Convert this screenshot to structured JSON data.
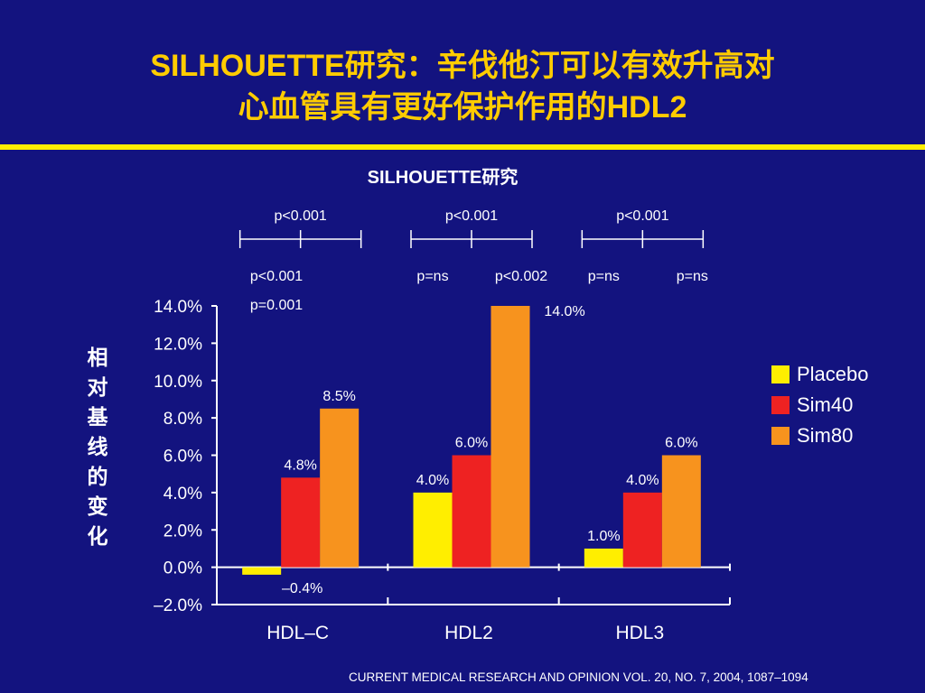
{
  "slide": {
    "title_line1": "SILHOUETTE研究：辛伐他汀可以有效升高对",
    "title_line2": "心血管具有更好保护作用的HDL2",
    "citation": "CURRENT MEDICAL RESEARCH AND OPINION VOL. 20, NO. 7, 2004, 1087–1094"
  },
  "chart_data": {
    "type": "bar",
    "title": "SILHOUETTE研究",
    "ylabel": "相对基线的变化",
    "xlabel": "",
    "categories": [
      "HDL–C",
      "HDL2",
      "HDL3"
    ],
    "series": [
      {
        "name": "Placebo",
        "color": "#ffee00",
        "values": [
          -0.4,
          4.0,
          1.0
        ],
        "labels": [
          "–0.4%",
          "4.0%",
          "1.0%"
        ]
      },
      {
        "name": "Sim40",
        "color": "#ee2222",
        "values": [
          4.8,
          6.0,
          4.0
        ],
        "labels": [
          "4.8%",
          "6.0%",
          "4.0%"
        ]
      },
      {
        "name": "Sim80",
        "color": "#f7931e",
        "values": [
          8.5,
          14.0,
          6.0
        ],
        "labels": [
          "8.5%",
          "14.0%",
          "6.0%"
        ]
      }
    ],
    "ylim": [
      -2.0,
      14.0
    ],
    "yticks": [
      -2.0,
      0.0,
      2.0,
      4.0,
      6.0,
      8.0,
      10.0,
      12.0,
      14.0
    ],
    "ytick_labels": [
      "–2.0%",
      "0.0%",
      "2.0%",
      "4.0%",
      "6.0%",
      "8.0%",
      "10.0%",
      "12.0%",
      "14.0%"
    ],
    "grid": false,
    "legend": "right",
    "significance": {
      "overall": [
        "p<0.001",
        "p<0.001",
        "p<0.001"
      ],
      "pairwise": [
        [
          "p<0.001",
          "p=0.001"
        ],
        [
          "p=ns",
          "p<0.002"
        ],
        [
          "p=ns",
          "p=ns"
        ]
      ]
    }
  }
}
